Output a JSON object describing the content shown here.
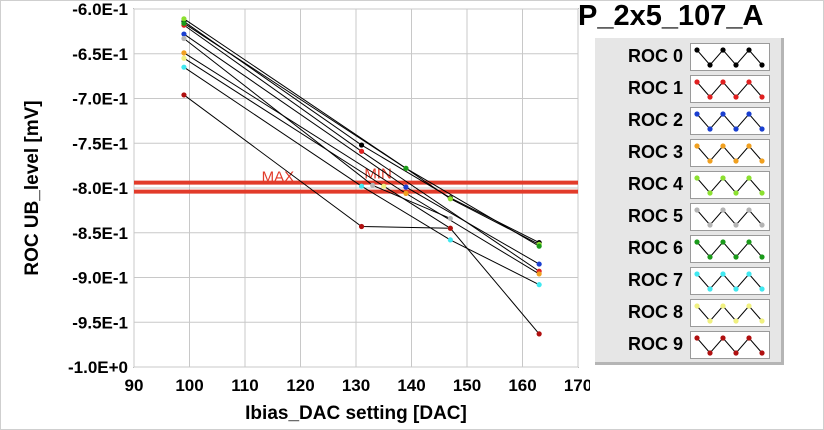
{
  "panel_title": "P_2x5_107_A",
  "legend": [
    {
      "label": "ROC 0",
      "color": "#000000"
    },
    {
      "label": "ROC 1",
      "color": "#e02020"
    },
    {
      "label": "ROC 2",
      "color": "#1a3fd0"
    },
    {
      "label": "ROC 3",
      "color": "#f0a020"
    },
    {
      "label": "ROC 4",
      "color": "#8ce030"
    },
    {
      "label": "ROC 5",
      "color": "#b4b4b4"
    },
    {
      "label": "ROC 6",
      "color": "#1a9a1a"
    },
    {
      "label": "ROC 7",
      "color": "#40e8f0"
    },
    {
      "label": "ROC 8",
      "color": "#f0f080"
    },
    {
      "label": "ROC 9",
      "color": "#b01010"
    }
  ],
  "chart_data": {
    "type": "line",
    "title": "",
    "xlabel": "Ibias_DAC setting [DAC]",
    "ylabel": "ROC UB_level [mV]",
    "xlim": [
      90,
      170
    ],
    "ylim": [
      -1.0,
      -0.6
    ],
    "xticks": [
      90,
      100,
      110,
      120,
      130,
      140,
      150,
      160,
      170
    ],
    "xtick_labels": [
      "90",
      "100",
      "110",
      "120",
      "130",
      "140",
      "150",
      "160",
      "170"
    ],
    "yticks": [
      -0.6,
      -0.65,
      -0.7,
      -0.75,
      -0.8,
      -0.85,
      -0.9,
      -0.95,
      -1.0
    ],
    "ytick_labels": [
      "-6.0E-1",
      "-6.5E-1",
      "-7.0E-1",
      "-7.5E-1",
      "-8.0E-1",
      "-8.5E-1",
      "-9.0E-1",
      "-9.5E-1",
      "-1.0E+0"
    ],
    "grid": true,
    "series": [
      {
        "color": "#000000",
        "x": [
          99,
          131,
          147,
          163
        ],
        "y": [
          -0.614,
          -0.752,
          -0.811,
          -0.861
        ]
      },
      {
        "color": "#e02020",
        "x": [
          99,
          131,
          163
        ],
        "y": [
          -0.618,
          -0.759,
          -0.893
        ]
      },
      {
        "color": "#1a3fd0",
        "x": [
          99,
          139,
          163
        ],
        "y": [
          -0.628,
          -0.799,
          -0.885
        ]
      },
      {
        "color": "#f0a020",
        "x": [
          99,
          139,
          163
        ],
        "y": [
          -0.649,
          -0.806,
          -0.896
        ]
      },
      {
        "color": "#8ce030",
        "x": [
          99,
          139,
          147,
          163
        ],
        "y": [
          -0.611,
          -0.778,
          -0.812,
          -0.863
        ]
      },
      {
        "color": "#b4b4b4",
        "x": [
          99,
          133,
          147
        ],
        "y": [
          -0.633,
          -0.797,
          -0.834
        ]
      },
      {
        "color": "#1a9a1a",
        "x": [
          99,
          139,
          163
        ],
        "y": [
          -0.616,
          -0.778,
          -0.865
        ]
      },
      {
        "color": "#40e8f0",
        "x": [
          99,
          131,
          147,
          163
        ],
        "y": [
          -0.665,
          -0.798,
          -0.858,
          -0.908
        ]
      },
      {
        "color": "#f0f080",
        "x": [
          99,
          135,
          147
        ],
        "y": [
          -0.655,
          -0.798,
          -0.845
        ]
      },
      {
        "color": "#b01010",
        "x": [
          99,
          131,
          147,
          163
        ],
        "y": [
          -0.696,
          -0.843,
          -0.845,
          -0.963
        ]
      }
    ],
    "reference_lines": [
      {
        "label": "MAX",
        "y": -0.794,
        "color": "#e23b2a"
      },
      {
        "label": "MIN",
        "y": -0.804,
        "color": "#e23b2a"
      }
    ]
  }
}
